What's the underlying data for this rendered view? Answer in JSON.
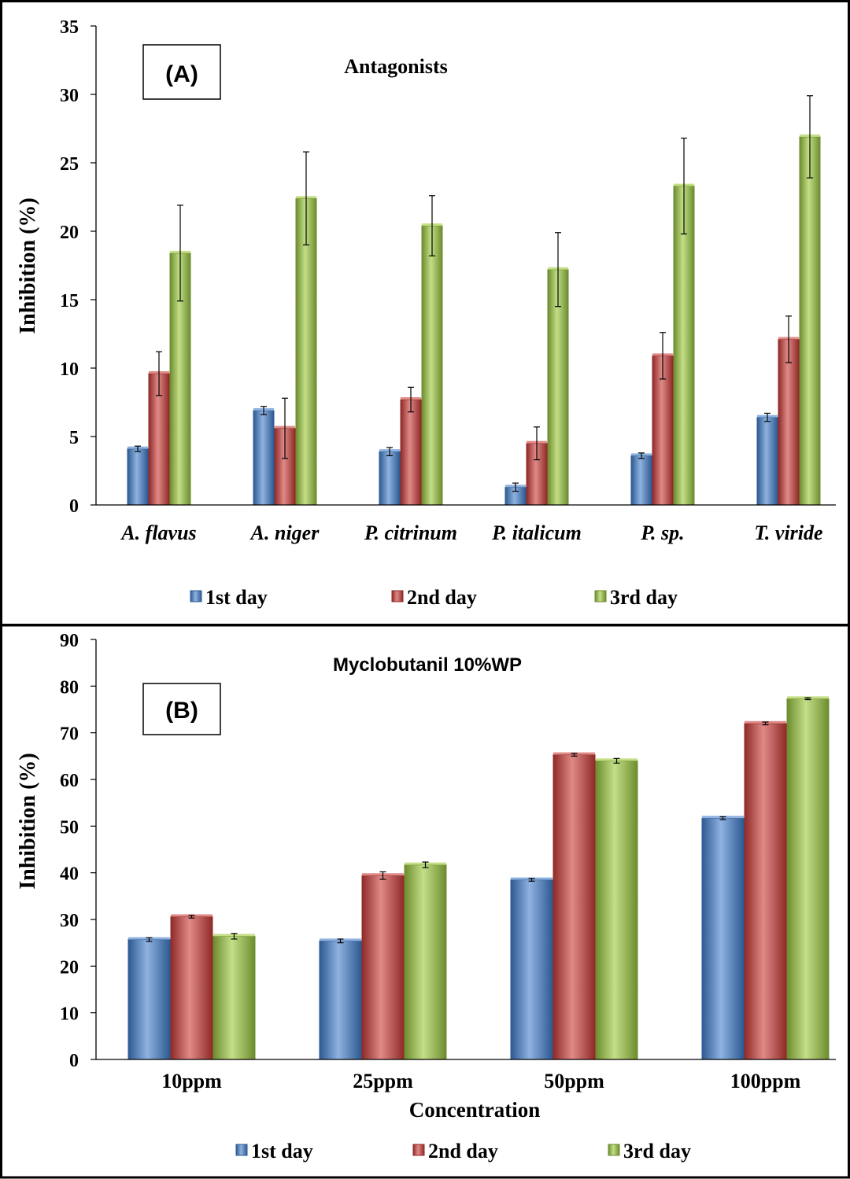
{
  "colors": {
    "series": [
      "#4f81bd",
      "#c0504d",
      "#9bbb59"
    ],
    "series_dark": [
      "#2d5a92",
      "#8f2a28",
      "#6c8c2e"
    ],
    "series_light": [
      "#8fb2e0",
      "#e08a88",
      "#c4df87"
    ],
    "axis": "#000000",
    "frame": "#000000"
  },
  "chart_data": [
    {
      "type": "bar",
      "panel_label": "(A)",
      "title": "Antagonists",
      "xlabel": "",
      "ylabel": "Inhibition (%)",
      "ylim": [
        0,
        35
      ],
      "yticks": [
        "0",
        "5",
        "10",
        "15",
        "20",
        "25",
        "30",
        "35"
      ],
      "categories": [
        "A. flavus",
        "A. niger",
        "P. citrinum",
        "P. italicum",
        "P. sp.",
        "T. viride"
      ],
      "italic_categories": true,
      "legend": "bottom",
      "series": [
        {
          "name": "1st day",
          "values": [
            4.1,
            6.9,
            3.9,
            1.3,
            3.6,
            6.4
          ],
          "errors": [
            0.2,
            0.3,
            0.3,
            0.3,
            0.2,
            0.3
          ]
        },
        {
          "name": "2nd day",
          "values": [
            9.6,
            5.6,
            7.7,
            4.5,
            10.9,
            12.1
          ],
          "errors": [
            1.6,
            2.2,
            0.9,
            1.2,
            1.7,
            1.7
          ]
        },
        {
          "name": "3rd day",
          "values": [
            18.4,
            22.4,
            20.4,
            17.2,
            23.3,
            26.9
          ],
          "errors": [
            3.5,
            3.4,
            2.2,
            2.7,
            3.5,
            3.0
          ]
        }
      ]
    },
    {
      "type": "bar",
      "panel_label": "(B)",
      "title": "Myclobutanil 10%WP",
      "xlabel": "Concentration",
      "ylabel": "Inhibition (%)",
      "ylim": [
        0,
        90
      ],
      "yticks": [
        "0",
        "10",
        "20",
        "30",
        "40",
        "50",
        "60",
        "70",
        "80",
        "90"
      ],
      "categories": [
        "10ppm",
        "25ppm",
        "50ppm",
        "100ppm"
      ],
      "italic_categories": false,
      "legend": "bottom",
      "series": [
        {
          "name": "1st day",
          "values": [
            25.7,
            25.4,
            38.5,
            51.7
          ],
          "errors": [
            0.4,
            0.4,
            0.3,
            0.3
          ]
        },
        {
          "name": "2nd day",
          "values": [
            30.6,
            39.4,
            65.3,
            72.0
          ],
          "errors": [
            0.3,
            0.8,
            0.3,
            0.3
          ]
        },
        {
          "name": "3rd day",
          "values": [
            26.4,
            41.7,
            64.0,
            77.3
          ],
          "errors": [
            0.6,
            0.6,
            0.5,
            0.2
          ]
        }
      ]
    }
  ]
}
